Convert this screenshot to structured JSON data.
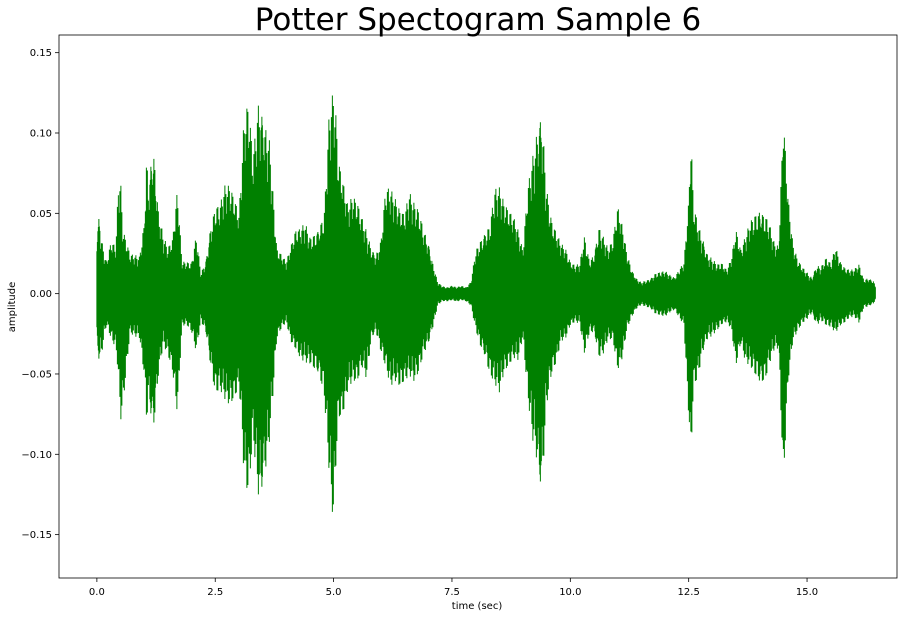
{
  "chart_data": {
    "type": "line",
    "title": "Potter Spectogram Sample 6",
    "xlabel": "time (sec)",
    "ylabel": "amplitude",
    "xlim": [
      -0.8,
      16.9
    ],
    "ylim": [
      -0.177,
      0.161
    ],
    "x_ticks": [
      0.0,
      2.5,
      5.0,
      7.5,
      10.0,
      12.5,
      15.0
    ],
    "x_tick_labels": [
      "0.0",
      "2.5",
      "5.0",
      "7.5",
      "10.0",
      "12.5",
      "15.0"
    ],
    "y_ticks": [
      -0.15,
      -0.1,
      -0.05,
      0.0,
      0.05,
      0.1,
      0.15
    ],
    "y_tick_labels": [
      "−0.15",
      "−0.10",
      "−0.05",
      "0.00",
      "0.05",
      "0.10",
      "0.15"
    ],
    "grid": false,
    "series": [
      {
        "color": "#008000",
        "x": [
          0.0,
          0.05,
          0.1,
          0.2,
          0.3,
          0.4,
          0.45,
          0.5,
          0.55,
          0.7,
          0.9,
          1.0,
          1.05,
          1.1,
          1.15,
          1.2,
          1.3,
          1.4,
          1.5,
          1.6,
          1.7,
          1.8,
          1.9,
          2.0,
          2.1,
          2.2,
          2.3,
          2.4,
          2.5,
          2.6,
          2.7,
          2.8,
          2.9,
          3.0,
          3.05,
          3.1,
          3.2,
          3.3,
          3.4,
          3.45,
          3.5,
          3.6,
          3.65,
          3.7,
          3.8,
          3.9,
          4.0,
          4.1,
          4.2,
          4.3,
          4.4,
          4.5,
          4.6,
          4.7,
          4.8,
          4.9,
          4.95,
          5.0,
          5.05,
          5.1,
          5.2,
          5.3,
          5.4,
          5.5,
          5.6,
          5.7,
          5.8,
          5.9,
          6.0,
          6.1,
          6.2,
          6.3,
          6.4,
          6.5,
          6.6,
          6.7,
          6.8,
          6.9,
          7.0,
          7.1,
          7.2,
          7.3,
          7.4,
          7.5,
          7.6,
          7.7,
          7.8,
          7.9,
          8.0,
          8.1,
          8.2,
          8.3,
          8.4,
          8.5,
          8.6,
          8.7,
          8.8,
          8.9,
          9.0,
          9.1,
          9.2,
          9.3,
          9.35,
          9.4,
          9.5,
          9.6,
          9.7,
          9.8,
          9.9,
          10.0,
          10.1,
          10.2,
          10.3,
          10.4,
          10.5,
          10.6,
          10.7,
          10.8,
          10.9,
          11.0,
          11.1,
          11.2,
          11.3,
          11.4,
          11.5,
          11.6,
          11.7,
          11.8,
          11.9,
          12.0,
          12.1,
          12.2,
          12.3,
          12.4,
          12.5,
          12.55,
          12.6,
          12.7,
          12.8,
          12.9,
          13.0,
          13.1,
          13.2,
          13.3,
          13.4,
          13.5,
          13.6,
          13.7,
          13.8,
          13.9,
          14.0,
          14.1,
          14.2,
          14.3,
          14.4,
          14.5,
          14.6,
          14.7,
          14.8,
          14.9,
          15.0,
          15.1,
          15.2,
          15.3,
          15.4,
          15.5,
          15.6,
          15.7,
          15.8,
          15.9,
          16.0,
          16.1,
          16.2,
          16.3,
          16.4,
          16.45
        ],
        "y_max": [
          0.048,
          0.06,
          0.04,
          0.022,
          0.035,
          0.03,
          0.068,
          0.072,
          0.04,
          0.025,
          0.025,
          0.05,
          0.1,
          0.08,
          0.105,
          0.11,
          0.06,
          0.04,
          0.03,
          0.035,
          0.065,
          0.02,
          0.02,
          0.02,
          0.04,
          0.015,
          0.025,
          0.05,
          0.062,
          0.06,
          0.07,
          0.068,
          0.06,
          0.05,
          0.075,
          0.108,
          0.128,
          0.095,
          0.14,
          0.145,
          0.138,
          0.12,
          0.11,
          0.08,
          0.03,
          0.025,
          0.02,
          0.03,
          0.04,
          0.042,
          0.048,
          0.04,
          0.045,
          0.052,
          0.058,
          0.12,
          0.13,
          0.133,
          0.115,
          0.085,
          0.07,
          0.055,
          0.062,
          0.06,
          0.052,
          0.045,
          0.035,
          0.03,
          0.038,
          0.072,
          0.068,
          0.06,
          0.052,
          0.05,
          0.065,
          0.06,
          0.058,
          0.048,
          0.04,
          0.022,
          0.008,
          0.005,
          0.004,
          0.005,
          0.004,
          0.005,
          0.004,
          0.008,
          0.03,
          0.04,
          0.048,
          0.05,
          0.072,
          0.07,
          0.058,
          0.052,
          0.048,
          0.04,
          0.028,
          0.072,
          0.098,
          0.125,
          0.136,
          0.135,
          0.075,
          0.05,
          0.04,
          0.032,
          0.028,
          0.02,
          0.018,
          0.02,
          0.04,
          0.025,
          0.03,
          0.05,
          0.04,
          0.03,
          0.035,
          0.055,
          0.042,
          0.025,
          0.015,
          0.01,
          0.008,
          0.01,
          0.012,
          0.015,
          0.015,
          0.015,
          0.012,
          0.01,
          0.015,
          0.02,
          0.06,
          0.107,
          0.062,
          0.05,
          0.042,
          0.03,
          0.025,
          0.02,
          0.02,
          0.015,
          0.022,
          0.04,
          0.028,
          0.038,
          0.05,
          0.058,
          0.065,
          0.06,
          0.05,
          0.035,
          0.03,
          0.112,
          0.06,
          0.032,
          0.022,
          0.018,
          0.015,
          0.012,
          0.022,
          0.02,
          0.025,
          0.02,
          0.03,
          0.02,
          0.016,
          0.015,
          0.016,
          0.02,
          0.01,
          0.012,
          0.01,
          0.005
        ],
        "y_min": [
          -0.038,
          -0.053,
          -0.045,
          -0.022,
          -0.03,
          -0.035,
          -0.05,
          -0.08,
          -0.07,
          -0.025,
          -0.03,
          -0.058,
          -0.095,
          -0.08,
          -0.098,
          -0.105,
          -0.06,
          -0.035,
          -0.04,
          -0.05,
          -0.075,
          -0.02,
          -0.02,
          -0.025,
          -0.04,
          -0.02,
          -0.03,
          -0.055,
          -0.072,
          -0.065,
          -0.068,
          -0.07,
          -0.066,
          -0.058,
          -0.078,
          -0.112,
          -0.135,
          -0.1,
          -0.148,
          -0.16,
          -0.15,
          -0.125,
          -0.105,
          -0.08,
          -0.03,
          -0.022,
          -0.018,
          -0.03,
          -0.035,
          -0.042,
          -0.046,
          -0.05,
          -0.058,
          -0.065,
          -0.075,
          -0.12,
          -0.14,
          -0.15,
          -0.11,
          -0.08,
          -0.075,
          -0.06,
          -0.055,
          -0.058,
          -0.05,
          -0.062,
          -0.035,
          -0.03,
          -0.042,
          -0.05,
          -0.06,
          -0.055,
          -0.058,
          -0.055,
          -0.052,
          -0.058,
          -0.055,
          -0.045,
          -0.04,
          -0.025,
          -0.008,
          -0.005,
          -0.005,
          -0.004,
          -0.005,
          -0.004,
          -0.005,
          -0.008,
          -0.025,
          -0.04,
          -0.05,
          -0.06,
          -0.062,
          -0.065,
          -0.05,
          -0.045,
          -0.04,
          -0.042,
          -0.028,
          -0.07,
          -0.105,
          -0.13,
          -0.148,
          -0.15,
          -0.08,
          -0.055,
          -0.045,
          -0.03,
          -0.028,
          -0.02,
          -0.018,
          -0.02,
          -0.042,
          -0.03,
          -0.03,
          -0.048,
          -0.042,
          -0.03,
          -0.03,
          -0.048,
          -0.04,
          -0.022,
          -0.015,
          -0.01,
          -0.008,
          -0.01,
          -0.012,
          -0.015,
          -0.015,
          -0.015,
          -0.012,
          -0.01,
          -0.015,
          -0.02,
          -0.08,
          -0.11,
          -0.065,
          -0.06,
          -0.045,
          -0.035,
          -0.03,
          -0.025,
          -0.02,
          -0.018,
          -0.022,
          -0.045,
          -0.032,
          -0.045,
          -0.05,
          -0.06,
          -0.07,
          -0.068,
          -0.05,
          -0.038,
          -0.035,
          -0.12,
          -0.055,
          -0.03,
          -0.024,
          -0.02,
          -0.018,
          -0.015,
          -0.025,
          -0.02,
          -0.022,
          -0.022,
          -0.025,
          -0.02,
          -0.018,
          -0.015,
          -0.015,
          -0.02,
          -0.01,
          -0.01,
          -0.008,
          -0.004
        ]
      }
    ]
  }
}
